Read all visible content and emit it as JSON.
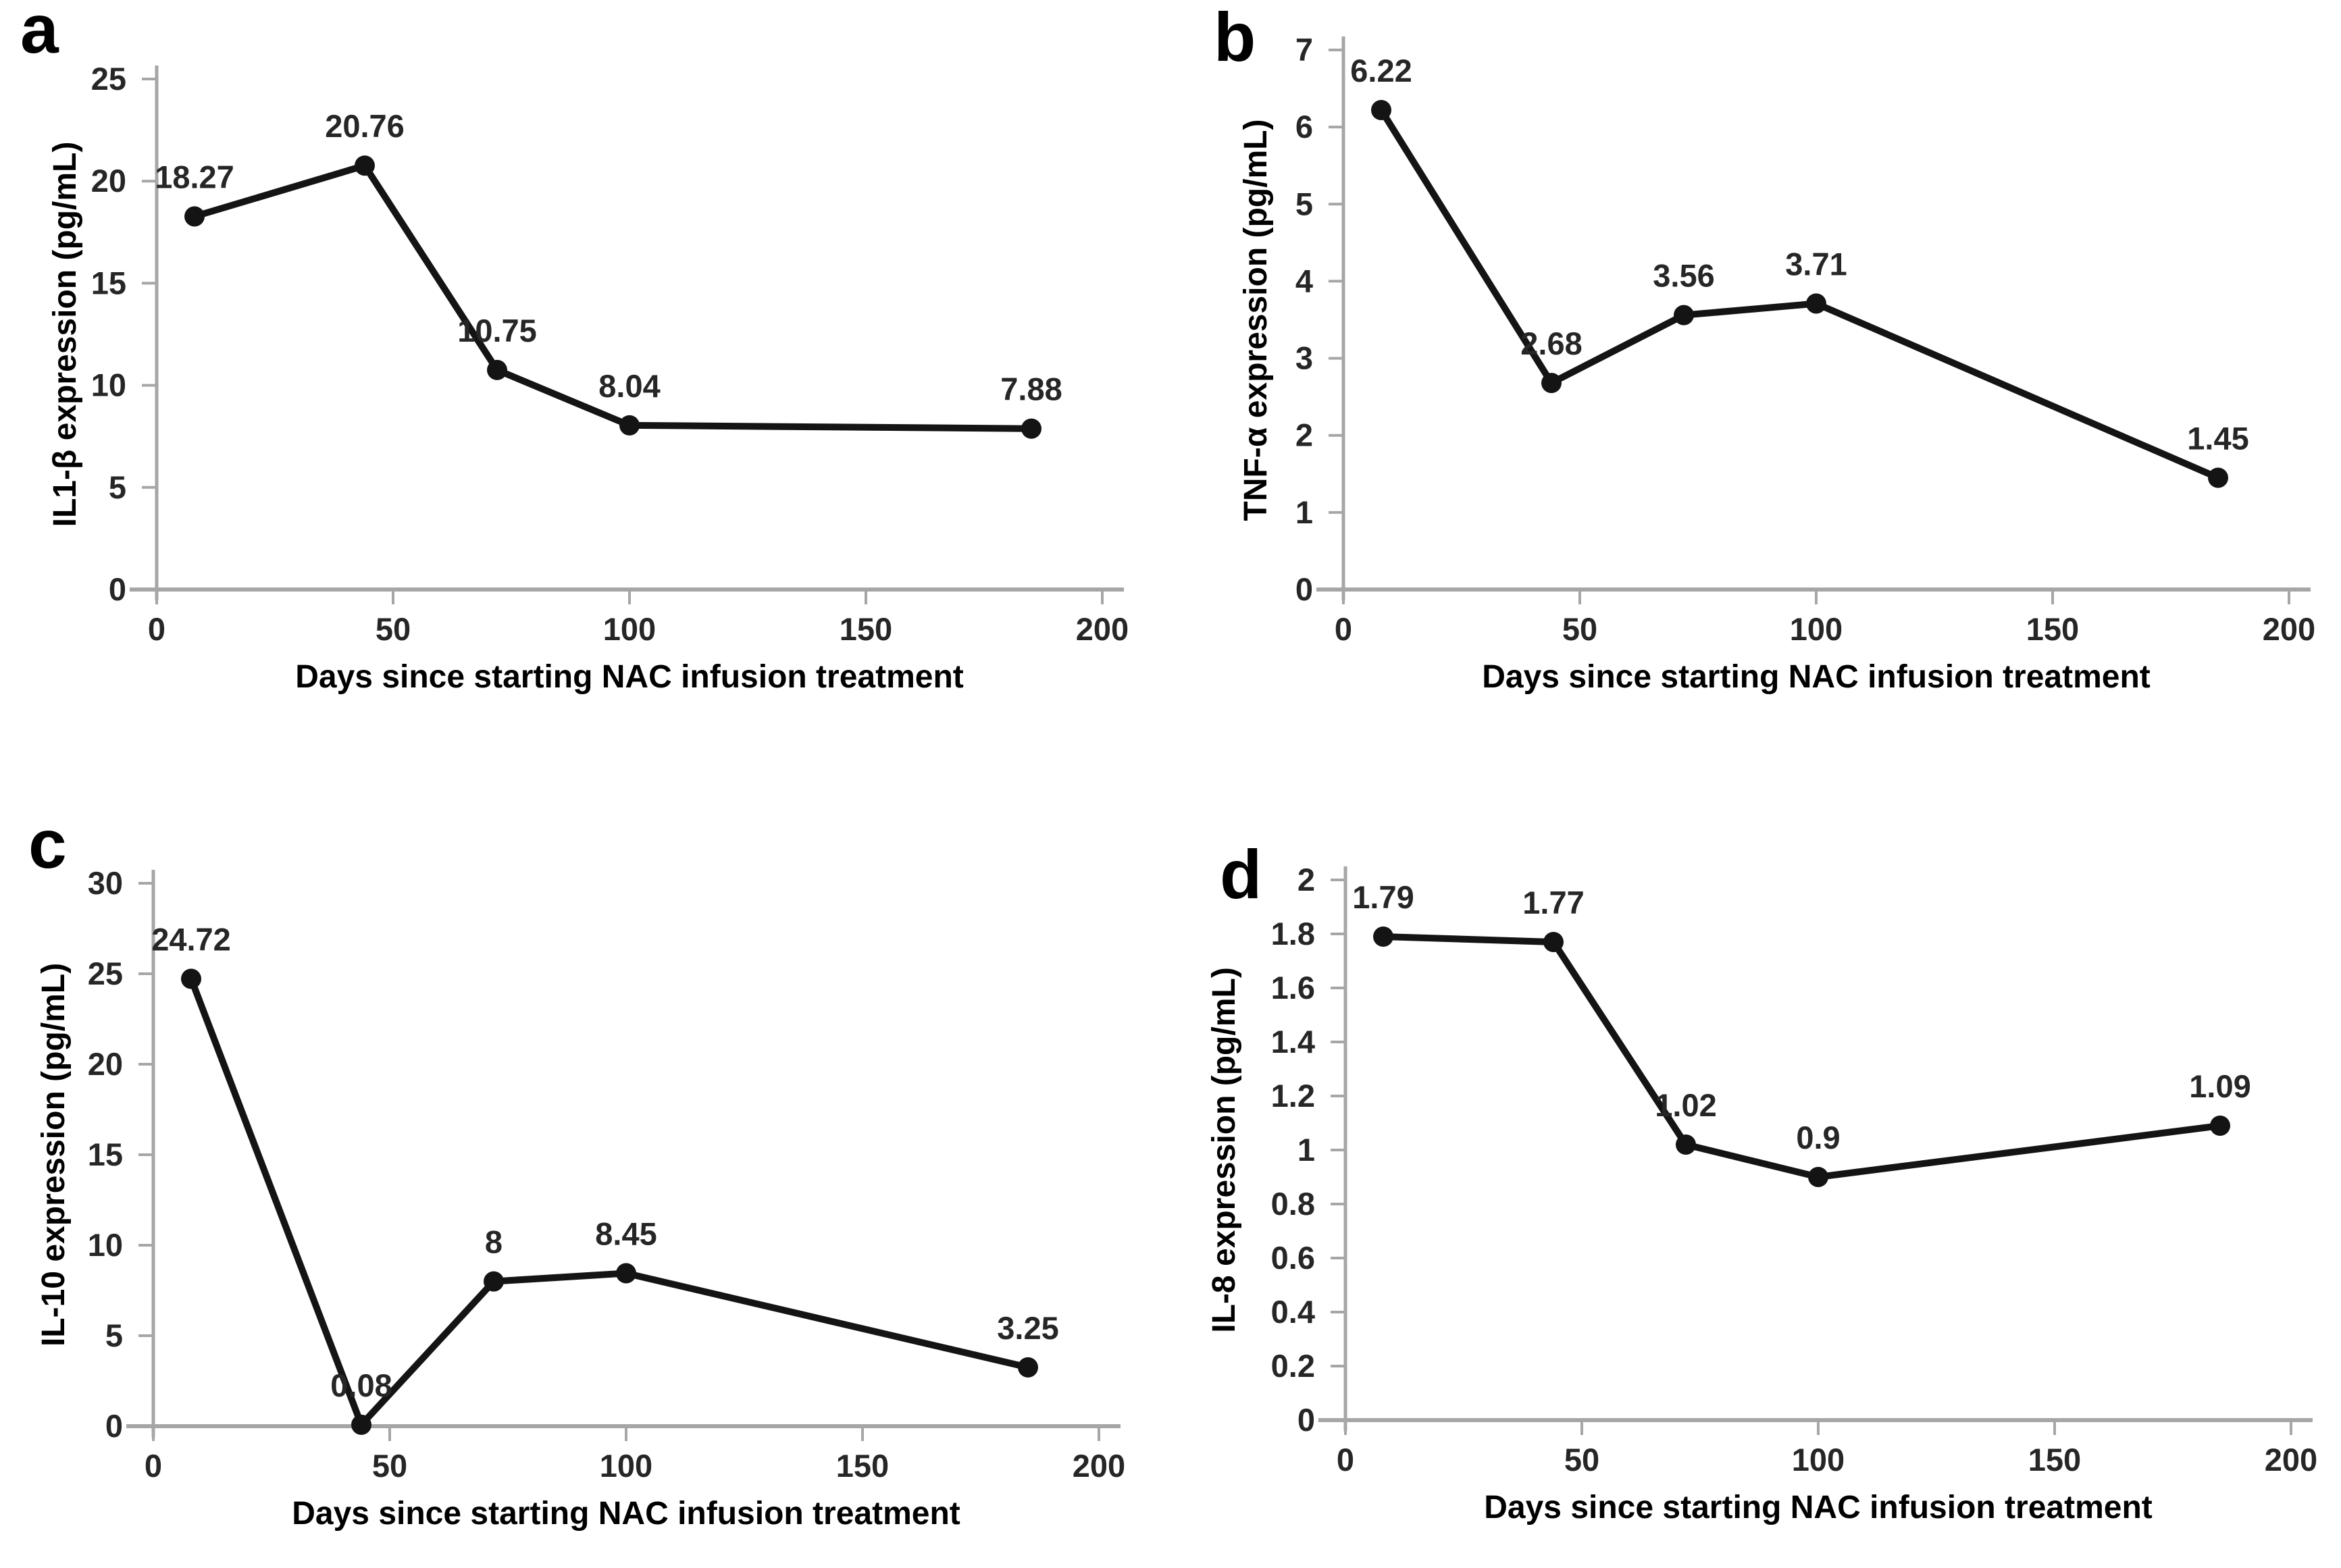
{
  "figure": {
    "x_axis_label": "Days since starting NAC infusion treatment",
    "x_range": [
      0,
      200
    ],
    "x_tick_labels": [
      "0",
      "50",
      "100",
      "150",
      "200"
    ],
    "colors": {
      "background": "#ffffff",
      "line": "#141414",
      "marker": "#141414",
      "axis": "#a6a6a6",
      "tick_label_text": "#262626",
      "data_label_text": "#262626",
      "axis_title_text": "#000000",
      "panel_letter_text": "#000000"
    }
  },
  "chart_data": [
    {
      "type": "line",
      "panel_label": "a",
      "ylabel": "IL1-β expression (pg/mL)",
      "xlabel": "Days since starting NAC infusion treatment",
      "x": [
        8,
        44,
        72,
        100,
        185
      ],
      "values": [
        18.27,
        20.76,
        10.75,
        8.04,
        7.88
      ],
      "data_labels": [
        "18.27",
        "20.76",
        "10.75",
        "8.04",
        "7.88"
      ],
      "xlim": [
        0,
        200
      ],
      "ylim": [
        0,
        25
      ],
      "xticks": [
        "0",
        "50",
        "100",
        "150",
        "200"
      ],
      "yticks": [
        "0",
        "5",
        "10",
        "15",
        "20",
        "25"
      ],
      "grid": false,
      "legend": null
    },
    {
      "type": "line",
      "panel_label": "b",
      "ylabel": "TNF-α expression (pg/mL)",
      "xlabel": "Days since starting NAC infusion treatment",
      "x": [
        8,
        44,
        72,
        100,
        185
      ],
      "values": [
        6.22,
        2.68,
        3.56,
        3.71,
        1.45
      ],
      "data_labels": [
        "6.22",
        "2.68",
        "3.56",
        "3.71",
        "1.45"
      ],
      "xlim": [
        0,
        200
      ],
      "ylim": [
        0,
        7
      ],
      "xticks": [
        "0",
        "50",
        "100",
        "150",
        "200"
      ],
      "yticks": [
        "0",
        "1",
        "2",
        "3",
        "4",
        "5",
        "6",
        "7"
      ],
      "grid": false,
      "legend": null
    },
    {
      "type": "line",
      "panel_label": "c",
      "ylabel": "IL-10 expression (pg/mL)",
      "xlabel": "Days since starting NAC infusion treatment",
      "x": [
        8,
        44,
        72,
        100,
        185
      ],
      "values": [
        24.72,
        0.08,
        8,
        8.45,
        3.25
      ],
      "data_labels": [
        "24.72",
        "0.08",
        "8",
        "8.45",
        "3.25"
      ],
      "xlim": [
        0,
        200
      ],
      "ylim": [
        0,
        30
      ],
      "xticks": [
        "0",
        "50",
        "100",
        "150",
        "200"
      ],
      "yticks": [
        "0",
        "5",
        "10",
        "15",
        "20",
        "25",
        "30"
      ],
      "grid": false,
      "legend": null
    },
    {
      "type": "line",
      "panel_label": "d",
      "ylabel": "IL-8 expression (pg/mL)",
      "xlabel": "Days since starting NAC infusion treatment",
      "x": [
        8,
        44,
        72,
        100,
        185
      ],
      "values": [
        1.79,
        1.77,
        1.02,
        0.9,
        1.09
      ],
      "data_labels": [
        "1.79",
        "1.77",
        "1.02",
        "0.9",
        "1.09"
      ],
      "xlim": [
        0,
        200
      ],
      "ylim": [
        0,
        2
      ],
      "xticks": [
        "0",
        "50",
        "100",
        "150",
        "200"
      ],
      "yticks": [
        "0",
        "0.2",
        "0.4",
        "0.6",
        "0.8",
        "1",
        "1.2",
        "1.4",
        "1.6",
        "1.8",
        "2"
      ],
      "grid": false,
      "legend": null
    }
  ]
}
